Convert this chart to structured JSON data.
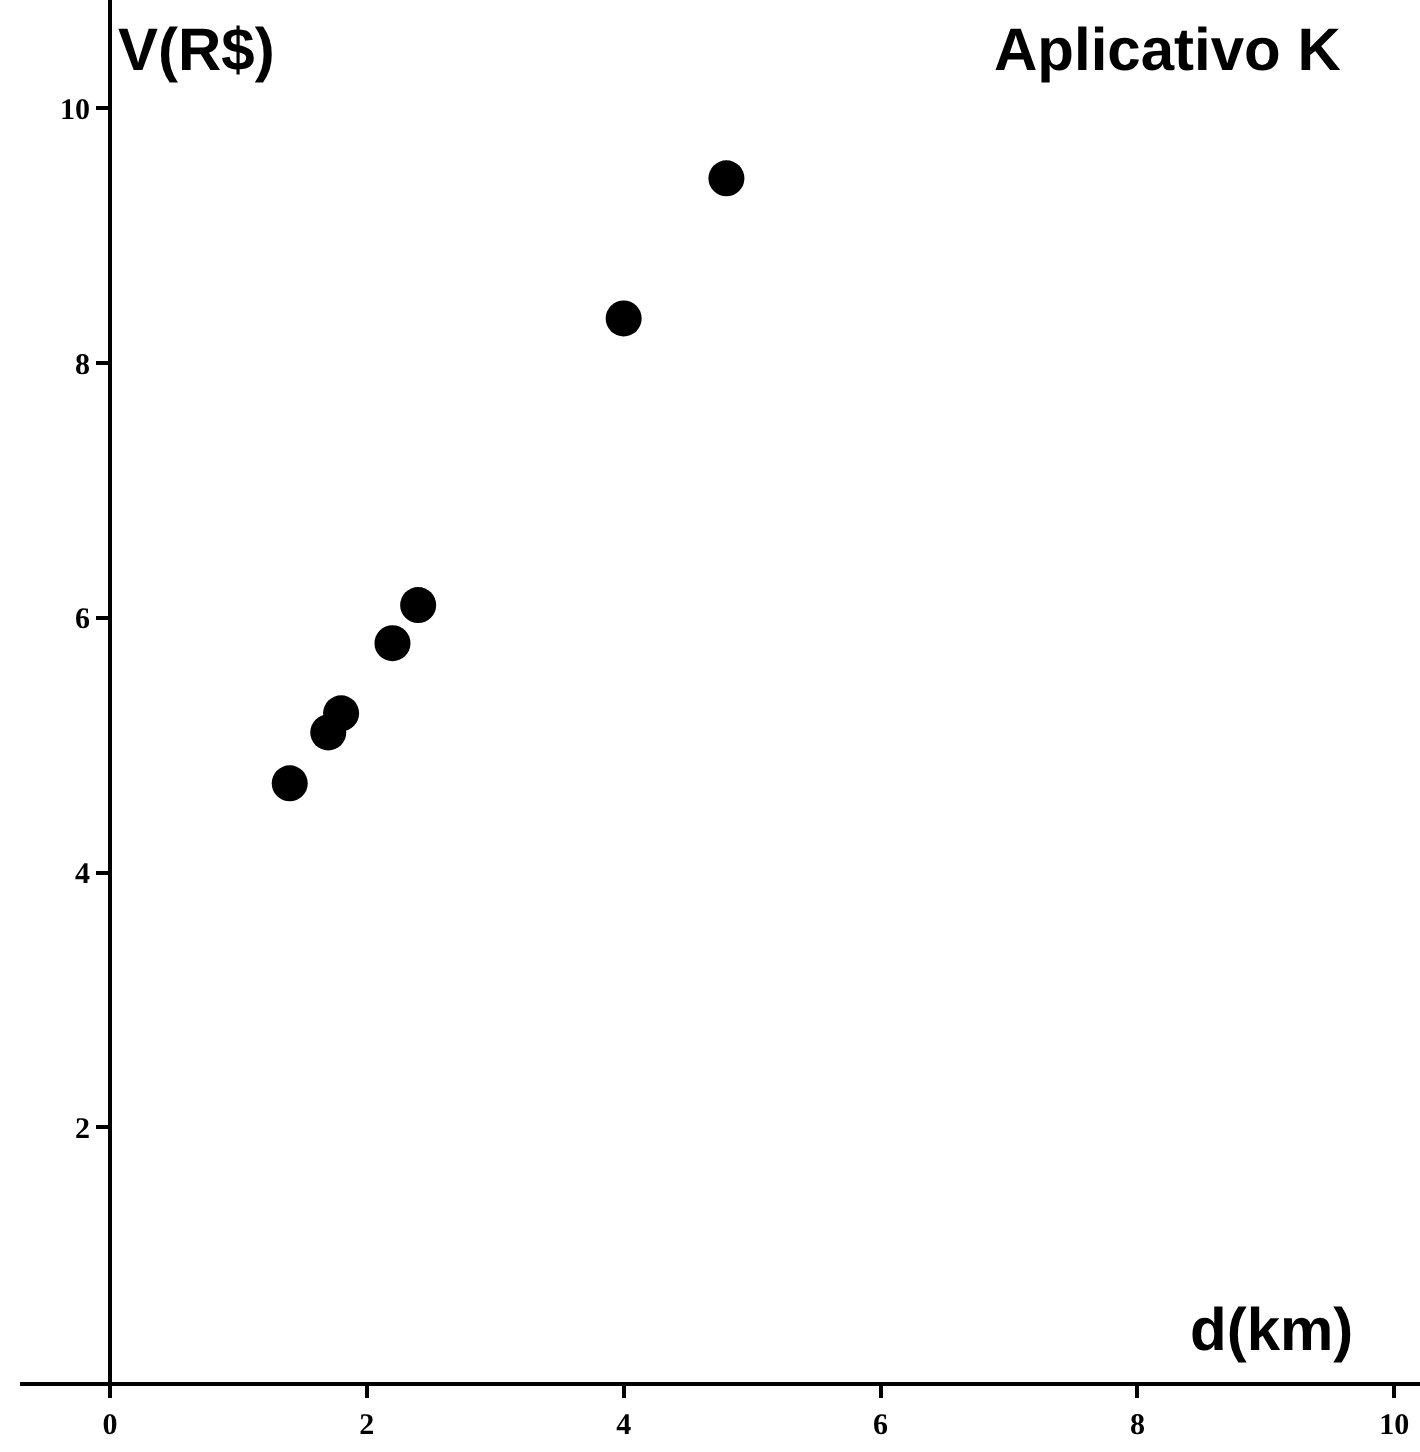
{
  "chart_data": {
    "type": "scatter",
    "title": "Aplicativo K",
    "xlabel": "d(km)",
    "ylabel": "V(R$)",
    "x": [
      1.4,
      1.7,
      1.8,
      2.2,
      2.4,
      4.0,
      4.8
    ],
    "values": [
      4.7,
      5.1,
      5.25,
      5.8,
      6.1,
      8.35,
      9.45
    ],
    "color": "#000000",
    "marker": "circle",
    "grid": false,
    "xlim": [
      -0.7,
      10.2
    ],
    "xticks": [
      0,
      2,
      4,
      6,
      8,
      10
    ],
    "ylim": [
      0,
      10.85
    ],
    "yticks": [
      2,
      4,
      6,
      8,
      10
    ]
  }
}
